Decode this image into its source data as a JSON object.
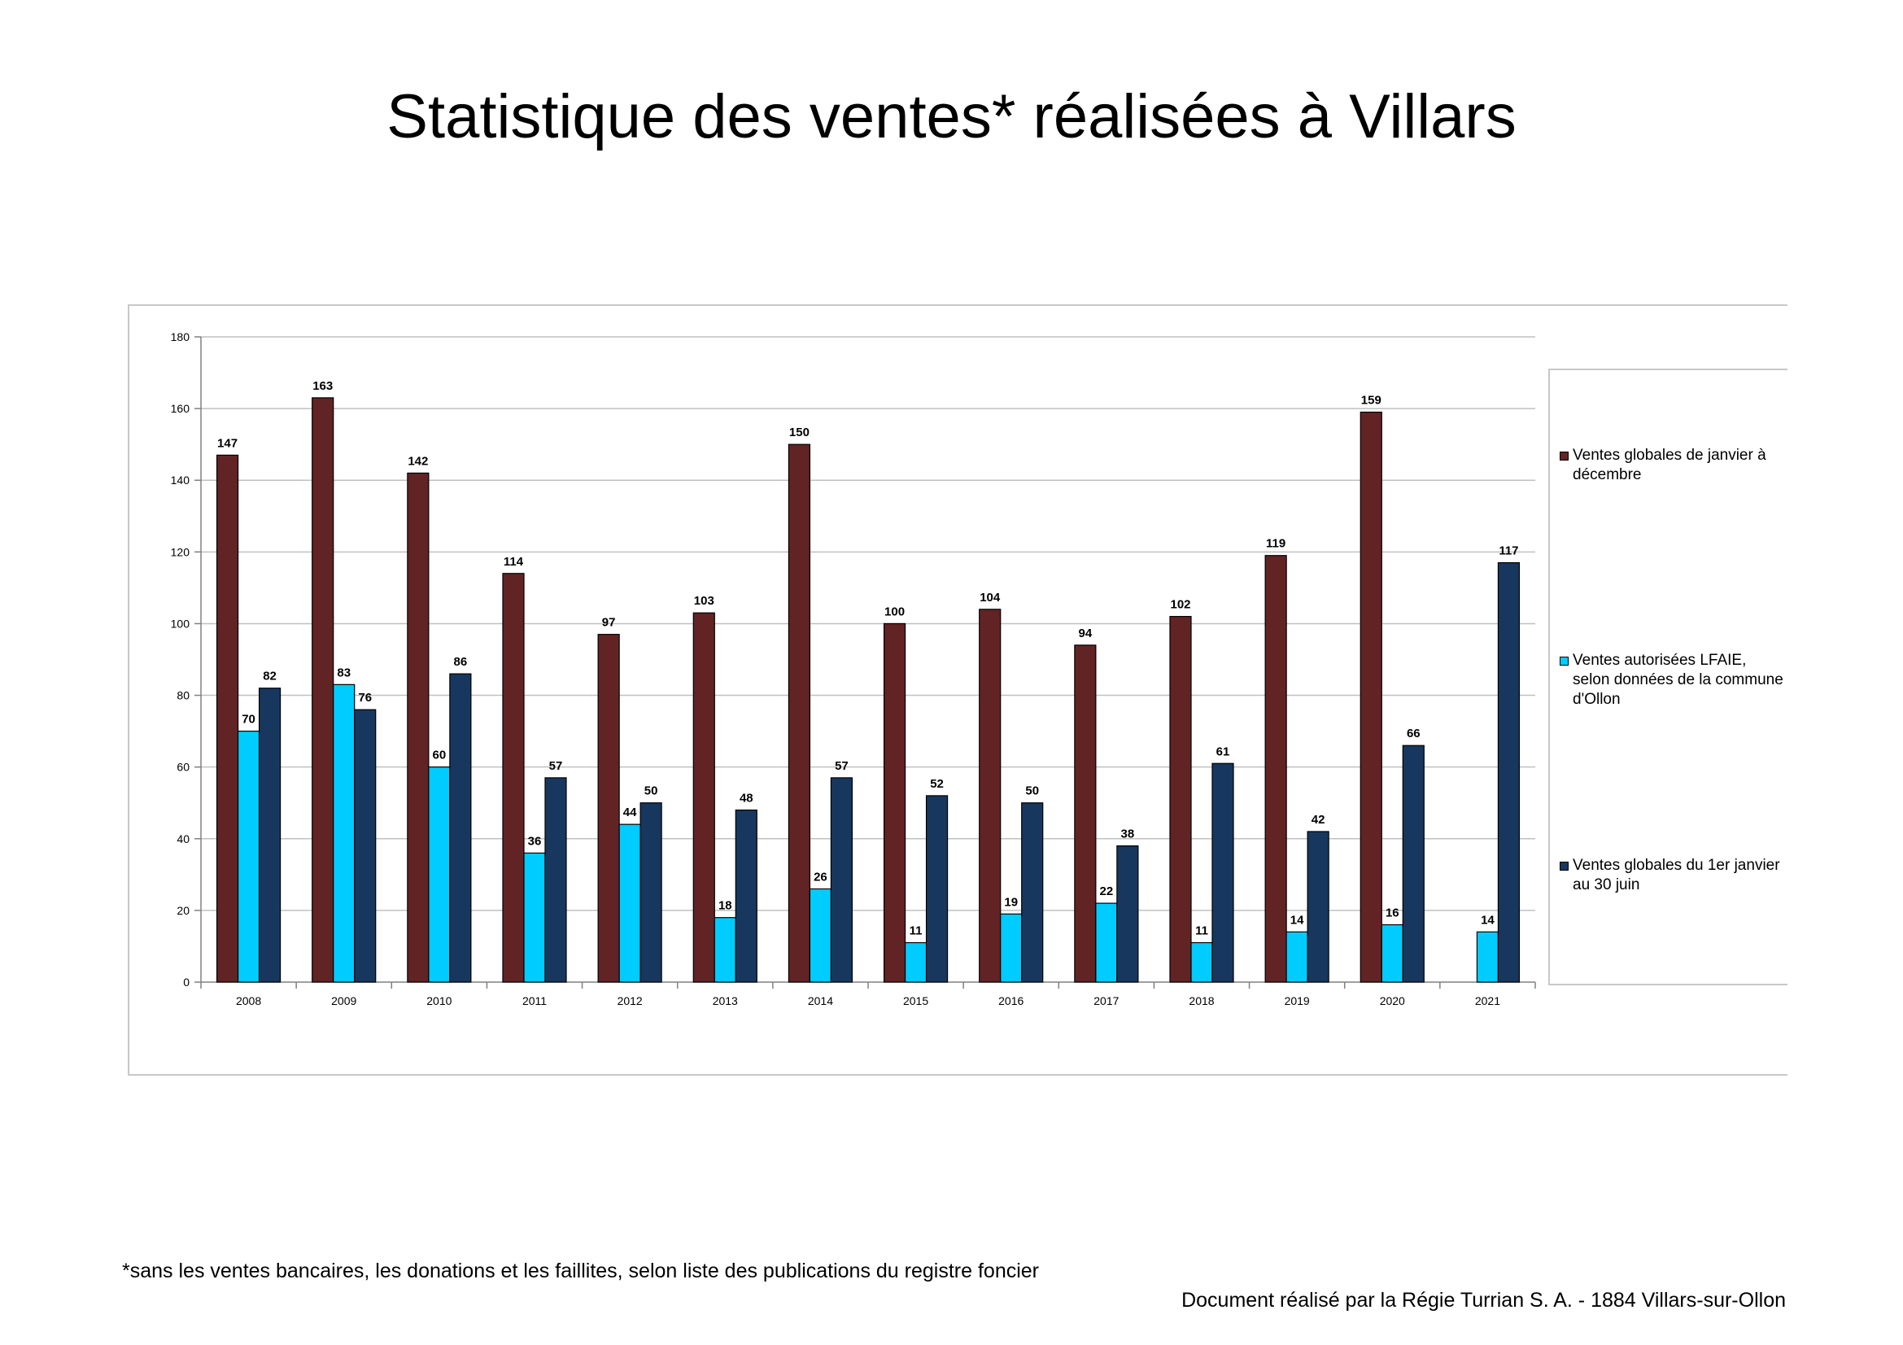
{
  "title": "Statistique des ventes* réalisées à Villars",
  "footnote": "*sans les ventes bancaires, les donations et les faillites, selon liste des publications du registre foncier",
  "credit": "Document réalisé par la Régie Turrian S. A. - 1884 Villars-sur-Ollon",
  "colors": {
    "series_1": "#622325",
    "series_2": "#00ccff",
    "series_3": "#17375e",
    "grid": "#c0c0c0"
  },
  "chart_data": {
    "type": "bar",
    "title": "",
    "xlabel": "",
    "ylabel": "",
    "ylim": [
      0,
      180
    ],
    "yticks": [
      0,
      20,
      40,
      60,
      80,
      100,
      120,
      140,
      160,
      180
    ],
    "grid": true,
    "legend_position": "right",
    "categories": [
      "2008",
      "2009",
      "2010",
      "2011",
      "2012",
      "2013",
      "2014",
      "2015",
      "2016",
      "2017",
      "2018",
      "2019",
      "2020",
      "2021"
    ],
    "series": [
      {
        "name": "Ventes globales de janvier à décembre",
        "values": [
          147,
          163,
          142,
          114,
          97,
          103,
          150,
          100,
          104,
          94,
          102,
          119,
          159,
          null
        ]
      },
      {
        "name": "Ventes autorisées LFAIE, selon données de la commune d'Ollon",
        "values": [
          70,
          83,
          60,
          36,
          44,
          18,
          26,
          11,
          19,
          22,
          11,
          14,
          16,
          14
        ]
      },
      {
        "name": "Ventes globales du 1er janvier au 30 juin",
        "values": [
          82,
          76,
          86,
          57,
          50,
          48,
          57,
          52,
          50,
          38,
          61,
          42,
          66,
          117
        ]
      }
    ]
  }
}
